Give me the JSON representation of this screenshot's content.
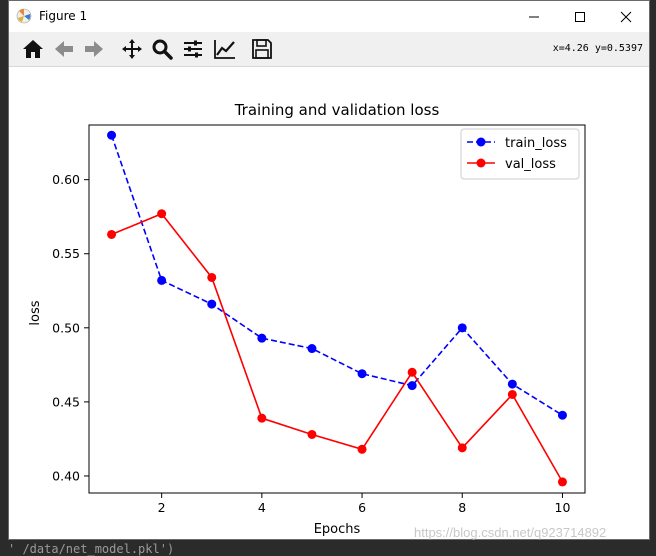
{
  "window": {
    "title": "Figure 1",
    "coord_readout": "x=4.26 y=0.5397"
  },
  "toolbar": {
    "tools": [
      "home-icon",
      "back-icon",
      "forward-icon",
      "pan-icon",
      "zoom-icon",
      "subplots-icon",
      "edit-curves-icon",
      "save-icon"
    ]
  },
  "colors": {
    "train": "#0000ff",
    "val": "#ff0000"
  },
  "chart_data": {
    "type": "line",
    "title": "Training and validation loss",
    "xlabel": "Epochs",
    "ylabel": "loss",
    "x": [
      1,
      2,
      3,
      4,
      5,
      6,
      7,
      8,
      9,
      10
    ],
    "xlim": [
      0.55,
      10.45
    ],
    "ylim": [
      0.3885,
      0.6369
    ],
    "xticks": [
      2,
      4,
      6,
      8,
      10
    ],
    "yticks": [
      0.4,
      0.45,
      0.5,
      0.55,
      0.6
    ],
    "grid": false,
    "legend_position": "top-right",
    "series": [
      {
        "name": "train_loss",
        "style": "dashed",
        "values": [
          0.63,
          0.532,
          0.516,
          0.493,
          0.486,
          0.469,
          0.461,
          0.5,
          0.462,
          0.441
        ]
      },
      {
        "name": "val_loss",
        "style": "solid",
        "values": [
          0.563,
          0.577,
          0.534,
          0.439,
          0.428,
          0.418,
          0.47,
          0.419,
          0.455,
          0.396
        ]
      }
    ]
  },
  "watermark": "https://blog.csdn.net/q923714892",
  "background_code": "' /data/net_model.pkl')"
}
